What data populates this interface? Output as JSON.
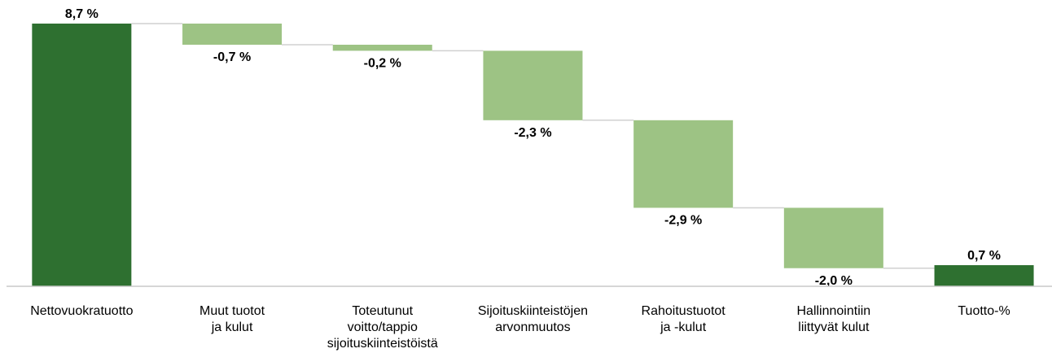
{
  "chart_data": {
    "type": "waterfall",
    "categories": [
      [
        "Nettovuokratuotto"
      ],
      [
        "Muut tuotot",
        "ja kulut"
      ],
      [
        "Toteutunut",
        "voitto/tappio",
        "sijoituskiinteistöistä"
      ],
      [
        "Sijoituskiinteistöjen",
        "arvonmuutos"
      ],
      [
        "Rahoitustuotot",
        "ja -kulut"
      ],
      [
        "Hallinnointiin",
        "liittyvät kulut"
      ],
      [
        "Tuotto-%"
      ]
    ],
    "values": [
      8.7,
      -0.7,
      -0.2,
      -2.3,
      -2.9,
      -2.0,
      0.7
    ],
    "value_labels": [
      "8,7 %",
      "-0,7 %",
      "-0,2 %",
      "-2,3 %",
      "-2,9 %",
      "-2,0 %",
      "0,7 %"
    ],
    "totals": [
      true,
      false,
      false,
      false,
      false,
      false,
      true
    ],
    "total_color": "#2e7030",
    "delta_color": "#9dc384",
    "ylim": [
      0,
      8.7
    ]
  }
}
